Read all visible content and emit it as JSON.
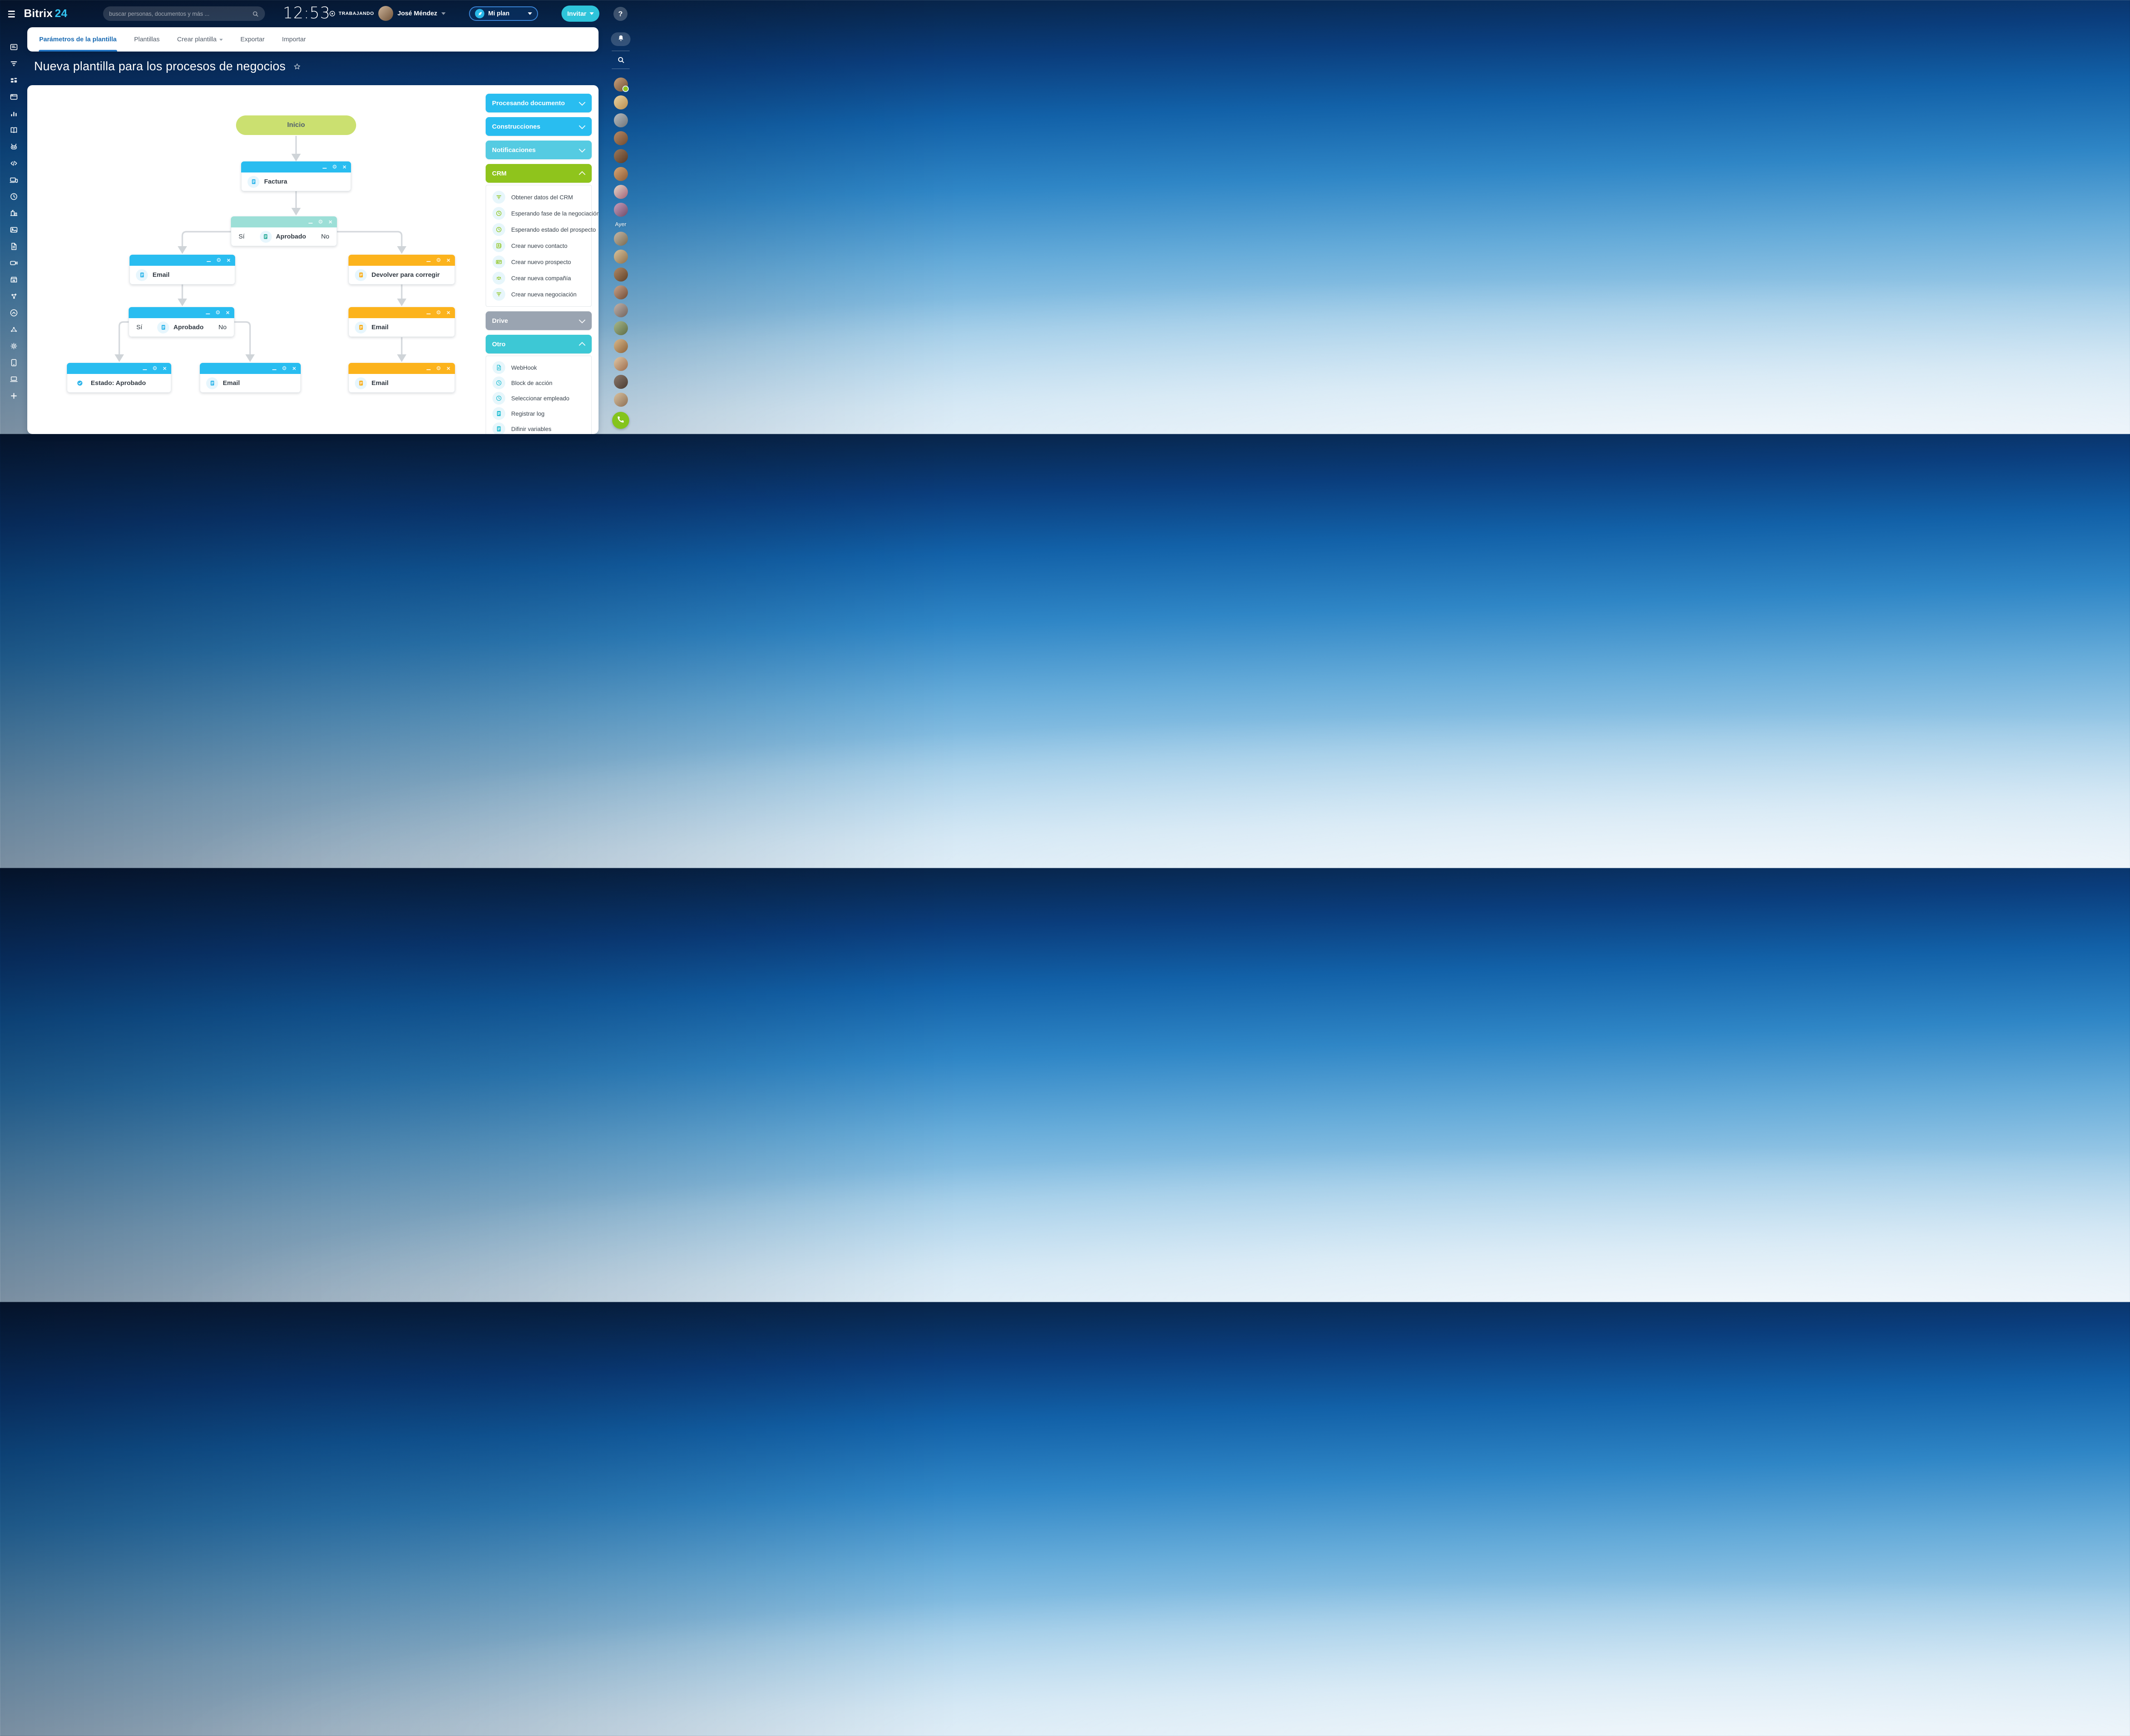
{
  "colors": {
    "accent_cyan": "#29bdf0",
    "teal_header": "#9cdfd7",
    "orange_header": "#fcb31c",
    "green_node": "#cbe070",
    "crm_green": "#8fc41c",
    "otro_teal": "#3dc8d5",
    "drive_gray": "#9aa4b1",
    "notif_cyan": "#55cbe2",
    "invite_teal": "#2ec4da",
    "tab_active": "#1a6bb3",
    "connector": "#d5d9dd",
    "phone_green": "#84c41d",
    "online_dot": "#8fc41c"
  },
  "topbar": {
    "logo_text": "Bitrix",
    "logo_accent": "24",
    "search_placeholder": "buscar personas, documentos y más ...",
    "time": "12:53",
    "status_label": "TRABAJANDO",
    "user_name": "José Méndez",
    "plan_label": "Mi plan",
    "invite_label": "Invitar",
    "help_label": "?"
  },
  "tabs": {
    "items": [
      {
        "label": "Parámetros de la plantilla",
        "active": true,
        "caret": false
      },
      {
        "label": "Plantillas",
        "active": false,
        "caret": false
      },
      {
        "label": "Crear plantilla",
        "active": false,
        "caret": true
      },
      {
        "label": "Exportar",
        "active": false,
        "caret": false
      },
      {
        "label": "Importar",
        "active": false,
        "caret": false
      }
    ]
  },
  "page": {
    "title": "Nueva plantilla para los procesos de negocios"
  },
  "flow": {
    "inicio": {
      "label": "Inicio"
    },
    "factura": {
      "label": "Factura"
    },
    "aprobado1": {
      "label": "Aprobado",
      "yes": "Sí",
      "no": "No"
    },
    "email_left": {
      "label": "Email"
    },
    "devolver": {
      "label": "Devolver para corregir"
    },
    "aprobado2": {
      "label": "Aprobado",
      "yes": "Sí",
      "no": "No"
    },
    "estado": {
      "label": "Estado: Aprobado"
    },
    "email_mid": {
      "label": "Email"
    },
    "email_r1": {
      "label": "Email"
    },
    "email_r2": {
      "label": "Email"
    }
  },
  "palette": {
    "sections": [
      {
        "label": "Procesando documento",
        "color": "#29bdf0",
        "state": "collapsed"
      },
      {
        "label": "Construcciones",
        "color": "#29bdf0",
        "state": "collapsed"
      },
      {
        "label": "Notificaciones",
        "color": "#55cbe2",
        "state": "collapsed"
      },
      {
        "label": "CRM",
        "color": "#8fc41c",
        "state": "expanded"
      },
      {
        "label": "Drive",
        "color": "#9aa4b1",
        "state": "collapsed"
      },
      {
        "label": "Otro",
        "color": "#3dc8d5",
        "state": "expanded"
      }
    ],
    "crm_items": [
      {
        "icon": "funnel",
        "label": "Obtener datos del CRM"
      },
      {
        "icon": "clock",
        "label": "Esperando fase de la negociación"
      },
      {
        "icon": "clock",
        "label": "Esperando estado del prospecto"
      },
      {
        "icon": "personbook",
        "label": "Crear nuevo contacto"
      },
      {
        "icon": "idcard",
        "label": "Crear nuevo prospecto"
      },
      {
        "icon": "people",
        "label": "Crear nueva compañía"
      },
      {
        "icon": "funnel",
        "label": "Crear nueva negociación"
      }
    ],
    "otro_items": [
      {
        "icon": "file",
        "label": "WebHook"
      },
      {
        "icon": "clock",
        "label": "Block de acción"
      },
      {
        "icon": "clock",
        "label": "Seleccionar empleado"
      },
      {
        "icon": "doc",
        "label": "Registrar log"
      },
      {
        "icon": "doc",
        "label": "Difinir variables"
      },
      {
        "icon": "doc",
        "label": ""
      }
    ]
  },
  "left_rail": {
    "icons": [
      "newsfeed",
      "funnel",
      "grid",
      "window",
      "chart",
      "book",
      "robot",
      "code",
      "devices",
      "clock",
      "buildings",
      "image",
      "file",
      "video",
      "store",
      "sharering",
      "chevroncircle",
      "nodes",
      "gear",
      "tablet",
      "laptop",
      "plus"
    ]
  },
  "right_rail": {
    "ayer_label": "Ayer",
    "avatars_top": [
      {
        "g": "#c9a27d,#6f4e33",
        "online": true
      },
      {
        "g": "#e9d4a4,#b98e4e",
        "online": false
      },
      {
        "g": "#b9bdc1,#6e7479",
        "online": false
      },
      {
        "g": "#b98a66,#6d4a2f",
        "online": false
      },
      {
        "g": "#9c7a5c,#583823",
        "online": false
      },
      {
        "g": "#d9a877,#8c5a33",
        "online": false
      },
      {
        "g": "#e6d9c8,#a06178",
        "online": false
      },
      {
        "g": "#caa0be,#6d4a66",
        "online": false
      }
    ],
    "avatars_bottom": [
      {
        "g": "#c7b9a8,#77694f",
        "online": false
      },
      {
        "g": "#d8c49e,#8d6f4a",
        "online": false
      },
      {
        "g": "#b08a68,#5f4026",
        "online": false
      },
      {
        "g": "#caa58c,#6f4a33",
        "online": false
      },
      {
        "g": "#c2b4ac,#6f625c",
        "online": false
      },
      {
        "g": "#a8b98c,#5c6b44",
        "online": false
      },
      {
        "g": "#d9b98c,#8c6238",
        "online": false
      },
      {
        "g": "#e0c9a8,#9c6b4a",
        "online": false
      },
      {
        "g": "#8c7a6d,#4a3b31",
        "online": false
      },
      {
        "g": "#d9c2a0,#8c6f54",
        "online": false
      }
    ]
  }
}
